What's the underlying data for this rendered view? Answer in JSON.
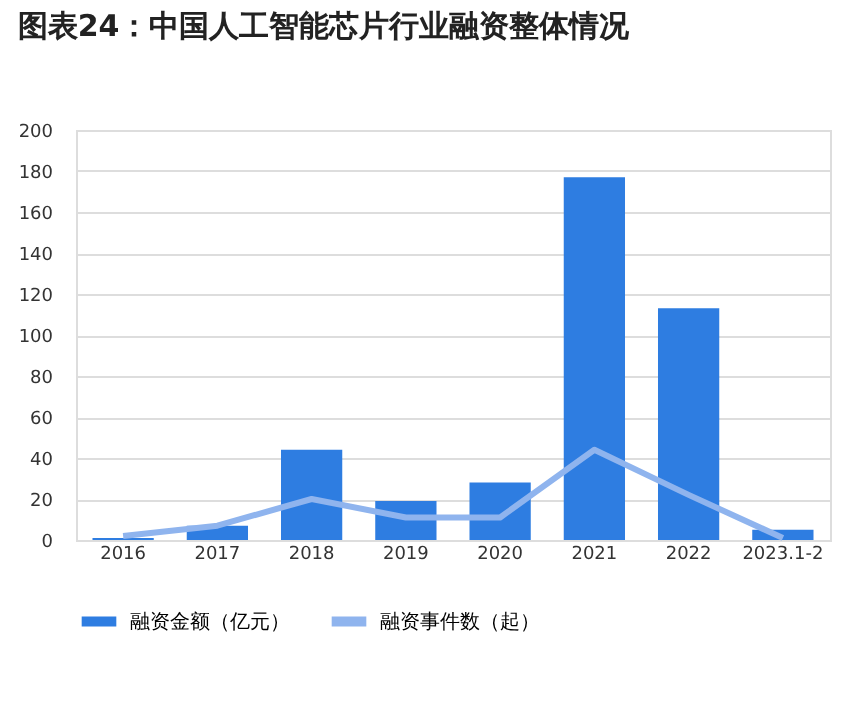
{
  "chart_data": {
    "type": "bar",
    "title": "图表24：中国人工智能芯片行业融资整体情况",
    "categories": [
      "2016",
      "2017",
      "2018",
      "2019",
      "2020",
      "2021",
      "2022",
      "2023.1-2"
    ],
    "series": [
      {
        "name": "融资金额（亿元）",
        "color": "#2e7de1",
        "values": [
          1,
          7,
          44,
          19,
          28,
          177,
          113,
          5
        ]
      },
      {
        "name": "融资事件数（起）",
        "type": "line",
        "color": "#8fb4ee",
        "values": [
          2,
          7,
          20,
          11,
          11,
          44,
          22,
          1
        ]
      }
    ],
    "ylim": [
      0,
      200
    ],
    "yticks": [
      0,
      20,
      40,
      60,
      80,
      100,
      120,
      140,
      160,
      180,
      200
    ],
    "grid": "y",
    "legend": "bottom",
    "marker": "none",
    "line_style": "solid"
  }
}
